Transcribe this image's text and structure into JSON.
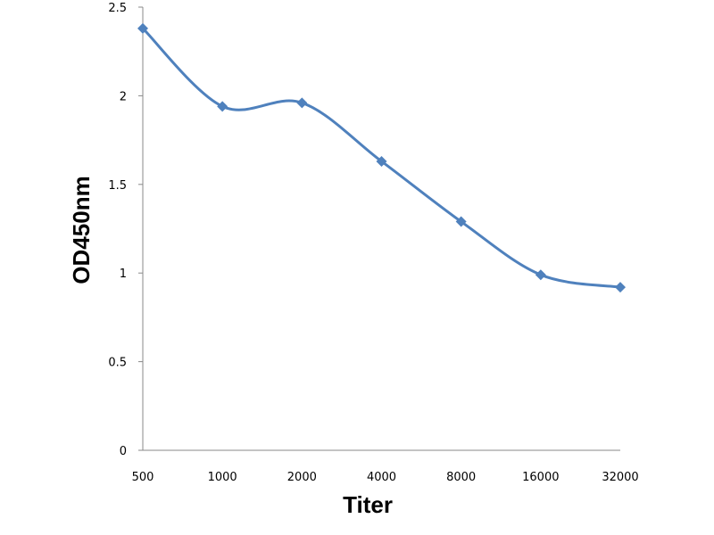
{
  "chart_data": {
    "type": "line",
    "title": "",
    "xlabel": "Titer",
    "ylabel": "OD450nm",
    "categories": [
      "500",
      "1000",
      "2000",
      "4000",
      "8000",
      "16000",
      "32000"
    ],
    "series": [
      {
        "values": [
          2.38,
          1.94,
          1.96,
          1.63,
          1.29,
          0.99,
          0.92
        ]
      }
    ],
    "ylim": [
      0,
      2.5
    ],
    "yticks": [
      "0",
      "0.5",
      "1",
      "1.5",
      "2",
      "2.5"
    ],
    "grid": false,
    "legend": "none",
    "smooth": true,
    "marker": "diamond",
    "line_color": "#4F81BD"
  }
}
